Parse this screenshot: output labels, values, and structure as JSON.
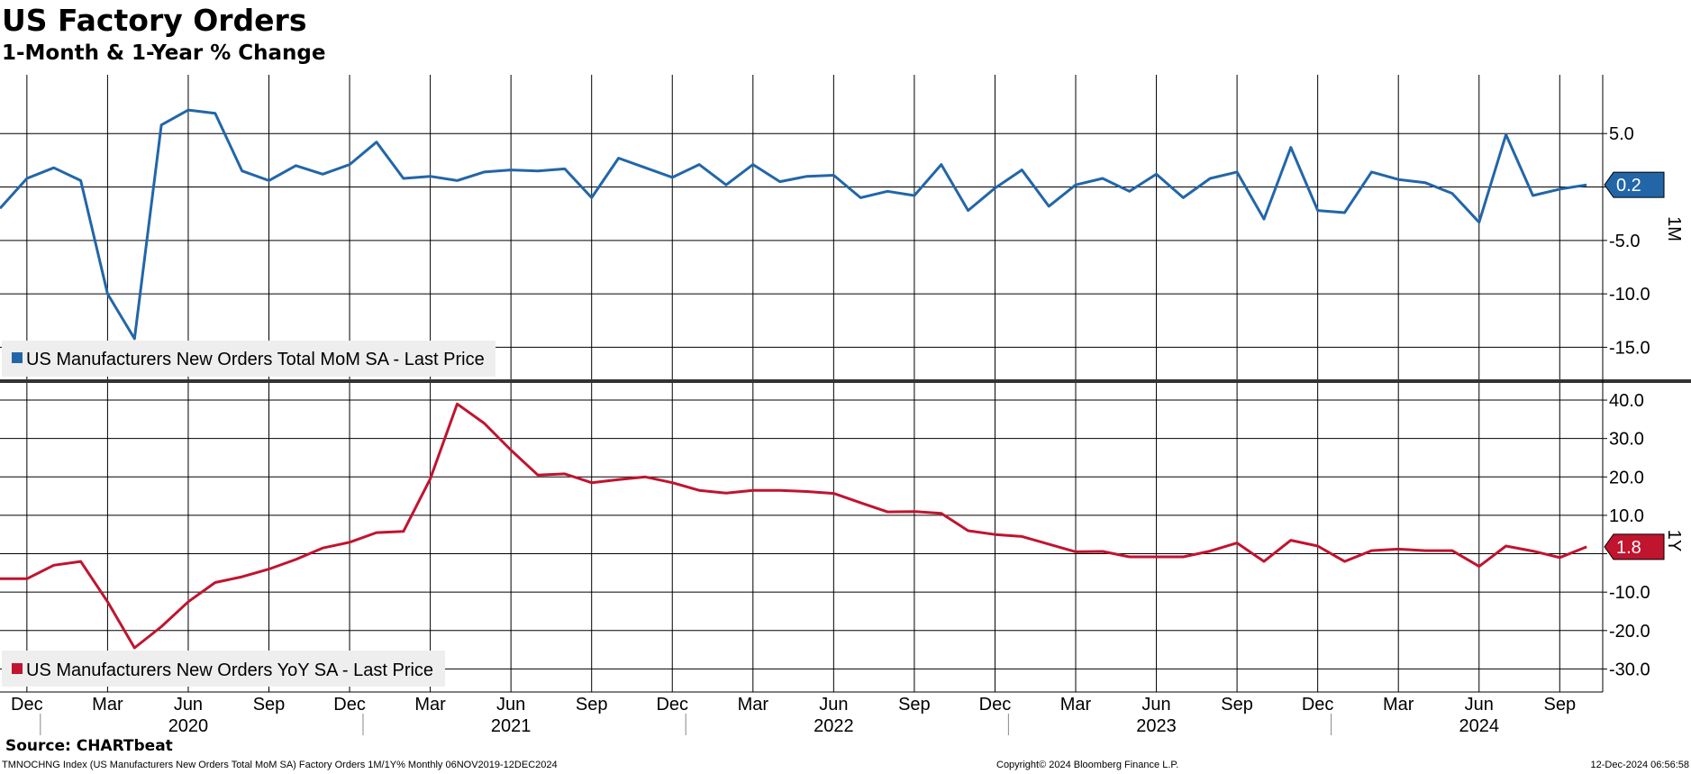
{
  "title": "US Factory Orders",
  "subtitle": "1-Month & 1-Year % Change",
  "source": "Source: CHARTbeat",
  "footer": {
    "left": "TMNOCHNG Index (US Manufacturers New Orders Total MoM SA) Factory Orders 1M/1Y%  Monthly 06NOV2019-12DEC2024",
    "center": "Copyright© 2024 Bloomberg Finance L.P.",
    "right": "12-Dec-2024 06:56:58"
  },
  "colors": {
    "mom": "#2266a8",
    "yoy": "#c0142f",
    "grid": "#000000"
  },
  "chart_data": [
    {
      "type": "line",
      "panel_label": "1M",
      "legend": "US Manufacturers New Orders Total MoM SA - Last Price",
      "legend_position": "bottom-left",
      "grid": true,
      "ylim": [
        -18,
        10.5
      ],
      "yticks": [
        5,
        0,
        -5,
        -10,
        -15
      ],
      "ytick_labels": [
        "5.0",
        "",
        "-5.0",
        "-10.0",
        "-15.0"
      ],
      "last_value_label": "0.2",
      "x_start": "2019-11",
      "series": [
        {
          "values": [
            -2.0,
            0.8,
            1.8,
            0.6,
            -10.0,
            -14.2,
            5.8,
            7.2,
            6.9,
            1.5,
            0.6,
            2.0,
            1.2,
            2.1,
            4.2,
            0.8,
            1.0,
            0.6,
            1.4,
            1.6,
            1.5,
            1.7,
            -1.0,
            2.7,
            1.8,
            0.9,
            2.1,
            0.2,
            2.1,
            0.5,
            1.0,
            1.1,
            -1.0,
            -0.4,
            -0.8,
            2.1,
            -2.2,
            -0.1,
            1.6,
            -1.8,
            0.2,
            0.8,
            -0.4,
            1.2,
            -1.0,
            0.8,
            1.4,
            -3.0,
            3.7,
            -2.2,
            -2.4,
            1.4,
            0.7,
            0.4,
            -0.6,
            -3.3,
            4.9,
            -0.8,
            -0.2,
            0.2
          ]
        }
      ]
    },
    {
      "type": "line",
      "panel_label": "1Y",
      "legend": "US Manufacturers New Orders YoY SA - Last Price",
      "legend_position": "bottom-left",
      "grid": true,
      "ylim": [
        -36,
        44
      ],
      "yticks": [
        40,
        30,
        20,
        10,
        0,
        -10,
        -20,
        -30
      ],
      "ytick_labels": [
        "40.0",
        "30.0",
        "20.0",
        "10.0",
        "",
        "-10.0",
        "-20.0",
        "-30.0"
      ],
      "last_value_label": "1.8",
      "x_start": "2019-11",
      "series": [
        {
          "values": [
            -6.5,
            -6.5,
            -3.0,
            -2.0,
            -12.5,
            -24.5,
            -19.0,
            -12.5,
            -7.5,
            -6.0,
            -4.0,
            -1.5,
            1.5,
            3.0,
            5.5,
            5.8,
            19.5,
            39.0,
            34.0,
            27.0,
            20.5,
            20.8,
            18.5,
            19.3,
            20.0,
            18.5,
            16.5,
            15.8,
            16.5,
            16.5,
            16.2,
            15.7,
            13.3,
            10.9,
            11.0,
            10.5,
            6.0,
            5.0,
            4.5,
            2.5,
            0.5,
            0.6,
            -0.8,
            -0.8,
            -0.8,
            0.7,
            2.8,
            -2.0,
            3.5,
            2.0,
            -2.0,
            0.8,
            1.2,
            0.8,
            0.8,
            -3.3,
            2.0,
            0.7,
            -1.0,
            1.8
          ]
        }
      ]
    }
  ],
  "x_axis": {
    "month_ticks": [
      {
        "date": "2019-12",
        "label": "Dec"
      },
      {
        "date": "2020-03",
        "label": "Mar"
      },
      {
        "date": "2020-06",
        "label": "Jun"
      },
      {
        "date": "2020-09",
        "label": "Sep"
      },
      {
        "date": "2020-12",
        "label": "Dec"
      },
      {
        "date": "2021-03",
        "label": "Mar"
      },
      {
        "date": "2021-06",
        "label": "Jun"
      },
      {
        "date": "2021-09",
        "label": "Sep"
      },
      {
        "date": "2021-12",
        "label": "Dec"
      },
      {
        "date": "2022-03",
        "label": "Mar"
      },
      {
        "date": "2022-06",
        "label": "Jun"
      },
      {
        "date": "2022-09",
        "label": "Sep"
      },
      {
        "date": "2022-12",
        "label": "Dec"
      },
      {
        "date": "2023-03",
        "label": "Mar"
      },
      {
        "date": "2023-06",
        "label": "Jun"
      },
      {
        "date": "2023-09",
        "label": "Sep"
      },
      {
        "date": "2023-12",
        "label": "Dec"
      },
      {
        "date": "2024-03",
        "label": "Mar"
      },
      {
        "date": "2024-06",
        "label": "Jun"
      },
      {
        "date": "2024-09",
        "label": "Sep"
      }
    ],
    "year_labels": [
      {
        "year": "2020",
        "date": "2020-06"
      },
      {
        "year": "2021",
        "date": "2021-06"
      },
      {
        "year": "2022",
        "date": "2022-06"
      },
      {
        "year": "2023",
        "date": "2023-06"
      },
      {
        "year": "2024",
        "date": "2024-06"
      }
    ]
  }
}
